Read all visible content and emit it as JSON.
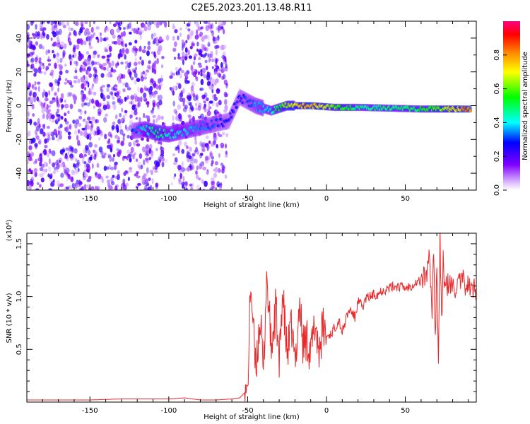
{
  "title": "C2E5.2023.201.13.48.R11",
  "colors": {
    "snr_line": "#e8282a",
    "axis": "#000000"
  },
  "chart_data": [
    {
      "type": "heatmap",
      "name": "spectrogram",
      "xlabel": "Height of straight line (km)",
      "ylabel": "Frequency (Hz)",
      "xlim": [
        -190,
        95
      ],
      "ylim": [
        -50,
        50
      ],
      "xticks": [
        -150,
        -100,
        -50,
        0,
        50
      ],
      "yticks": [
        -40,
        -20,
        0,
        20,
        40
      ],
      "colorbar": {
        "label": "Normalized spectral amplitude",
        "range": [
          0,
          1
        ],
        "ticks": [
          0.0,
          0.2,
          0.4,
          0.6,
          0.8
        ],
        "colormap": [
          "#ffffff",
          "#d9b3ff",
          "#7f00ff",
          "#0000ff",
          "#00ffff",
          "#00ff00",
          "#ffff00",
          "#ff8000",
          "#ff0000",
          "#ff0080"
        ]
      },
      "noise_region": {
        "x": [
          -190,
          -63
        ],
        "amplitude": 0.25
      },
      "feature_segments": [
        {
          "x": -123,
          "y": -15,
          "amplitude": 0.3
        },
        {
          "x": -115,
          "y": -14,
          "amplitude": 0.45
        },
        {
          "x": -108,
          "y": -16,
          "amplitude": 0.55
        },
        {
          "x": -100,
          "y": -17,
          "amplitude": 0.45
        },
        {
          "x": -62,
          "y": -9,
          "amplitude": 0.3
        },
        {
          "x": -55,
          "y": 5,
          "amplitude": 0.3
        },
        {
          "x": -45,
          "y": 0,
          "amplitude": 0.38
        },
        {
          "x": -35,
          "y": -3,
          "amplitude": 0.45
        },
        {
          "x": -25,
          "y": 0,
          "amplitude": 0.7
        },
        {
          "x": -10,
          "y": 0,
          "amplitude": 0.85
        },
        {
          "x": 5,
          "y": -1,
          "amplitude": 0.65
        },
        {
          "x": 20,
          "y": -1,
          "amplitude": 0.5
        },
        {
          "x": 40,
          "y": -1.5,
          "amplitude": 0.52
        },
        {
          "x": 60,
          "y": -2,
          "amplitude": 0.55
        },
        {
          "x": 75,
          "y": -2,
          "amplitude": 0.7
        },
        {
          "x": 92,
          "y": -2,
          "amplitude": 0.92
        }
      ]
    },
    {
      "type": "line",
      "name": "snr",
      "xlabel": "Height of straight line (km)",
      "ylabel": "SNR (10 * v/v)",
      "yscale_label": "(x10⁴)",
      "xlim": [
        -190,
        95
      ],
      "ylim": [
        0,
        1.6
      ],
      "xticks": [
        -150,
        -100,
        -50,
        0,
        50
      ],
      "yticks": [
        0.5,
        1.0,
        1.5
      ],
      "ytick_labels": [
        "0.5",
        "1.0",
        "1.5"
      ],
      "x": [
        -190,
        -170,
        -150,
        -130,
        -110,
        -100,
        -90,
        -80,
        -70,
        -60,
        -55,
        -50,
        -48,
        -45,
        -42,
        -40,
        -38,
        -35,
        -32,
        -30,
        -28,
        -25,
        -22,
        -20,
        -17,
        -15,
        -12,
        -10,
        -7,
        -5,
        -2,
        0,
        3,
        5,
        8,
        10,
        13,
        15,
        18,
        20,
        23,
        25,
        28,
        30,
        33,
        35,
        38,
        40,
        43,
        45,
        48,
        50,
        53,
        55,
        58,
        60,
        62,
        64,
        65,
        66,
        67,
        68,
        69,
        70,
        71,
        72,
        73,
        74,
        75,
        77,
        80,
        83,
        86,
        89,
        92,
        95
      ],
      "values": [
        0.02,
        0.02,
        0.02,
        0.03,
        0.03,
        0.03,
        0.04,
        0.02,
        0.02,
        0.03,
        0.04,
        0.12,
        1.15,
        0.3,
        0.8,
        0.25,
        1.22,
        0.5,
        0.9,
        0.3,
        1.05,
        0.45,
        0.7,
        0.35,
        0.95,
        0.55,
        0.6,
        0.45,
        0.75,
        0.5,
        0.7,
        0.62,
        0.65,
        0.7,
        0.78,
        0.66,
        0.82,
        0.88,
        0.8,
        0.95,
        0.9,
        0.98,
        1.0,
        1.02,
        1.03,
        1.06,
        1.07,
        1.08,
        1.1,
        1.1,
        1.09,
        1.08,
        1.1,
        1.12,
        1.14,
        1.15,
        1.18,
        1.25,
        1.45,
        1.05,
        0.9,
        1.5,
        0.6,
        1.3,
        0.35,
        1.58,
        0.7,
        1.4,
        1.05,
        1.12,
        1.08,
        1.1,
        1.14,
        1.12,
        1.06,
        1.08
      ]
    }
  ]
}
